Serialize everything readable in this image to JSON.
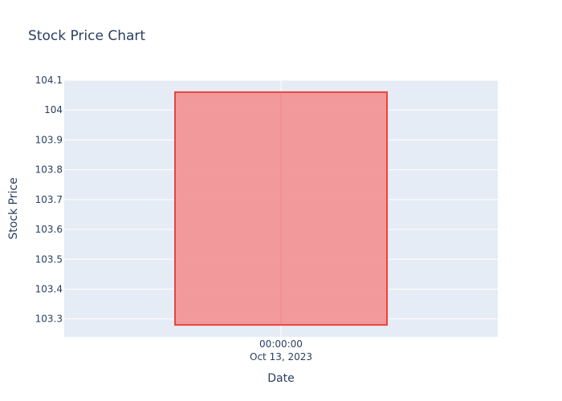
{
  "chart_data": {
    "type": "candlestick",
    "title": "Stock Price Chart",
    "xlabel": "Date",
    "ylabel": "Stock Price",
    "ylim": [
      103.24,
      104.1
    ],
    "y_ticks": [
      103.3,
      103.4,
      103.5,
      103.6,
      103.7,
      103.8,
      103.9,
      104,
      104.1
    ],
    "x_tick": {
      "time": "00:00:00",
      "date": "Oct 13, 2023"
    },
    "grid": true,
    "colors": {
      "plot_bg": "#e5ecf6",
      "grid": "#ffffff",
      "candle_fill": "#f29696",
      "candle_line": "#e8453c"
    },
    "candles": [
      {
        "date": "2023-10-13",
        "open": 104.06,
        "high": 104.06,
        "low": 103.28,
        "close": 103.28
      }
    ]
  }
}
